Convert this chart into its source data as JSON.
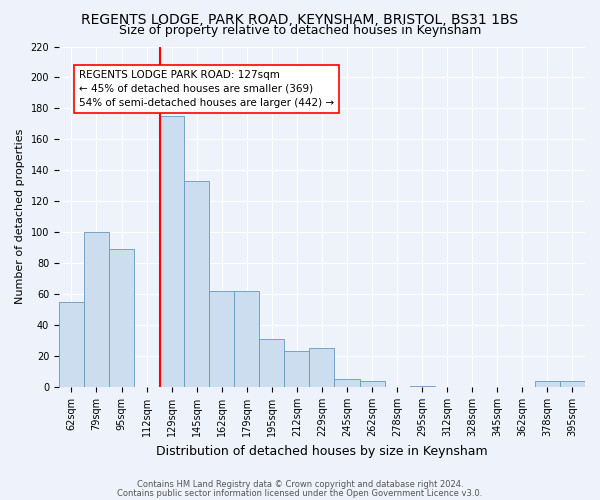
{
  "title": "REGENTS LODGE, PARK ROAD, KEYNSHAM, BRISTOL, BS31 1BS",
  "subtitle": "Size of property relative to detached houses in Keynsham",
  "xlabel": "Distribution of detached houses by size in Keynsham",
  "ylabel": "Number of detached properties",
  "footnote1": "Contains HM Land Registry data © Crown copyright and database right 2024.",
  "footnote2": "Contains public sector information licensed under the Open Government Licence v3.0.",
  "categories": [
    "62sqm",
    "79sqm",
    "95sqm",
    "112sqm",
    "129sqm",
    "145sqm",
    "162sqm",
    "179sqm",
    "195sqm",
    "212sqm",
    "229sqm",
    "245sqm",
    "262sqm",
    "278sqm",
    "295sqm",
    "312sqm",
    "328sqm",
    "345sqm",
    "362sqm",
    "378sqm",
    "395sqm"
  ],
  "values": [
    55,
    100,
    89,
    0,
    175,
    133,
    62,
    62,
    31,
    23,
    25,
    5,
    4,
    0,
    1,
    0,
    0,
    0,
    0,
    4,
    4
  ],
  "bar_color": "#ccddf0",
  "bar_edge_color": "#6699bb",
  "property_line_color": "red",
  "annotation_line1": "REGENTS LODGE PARK ROAD: 127sqm",
  "annotation_line2": "← 45% of detached houses are smaller (369)",
  "annotation_line3": "54% of semi-detached houses are larger (442) →",
  "annotation_box_color": "white",
  "annotation_box_edge_color": "red",
  "ylim": [
    0,
    220
  ],
  "yticks": [
    0,
    20,
    40,
    60,
    80,
    100,
    120,
    140,
    160,
    180,
    200,
    220
  ],
  "background_color": "#eef2fa",
  "grid_color": "#ffffff",
  "title_fontsize": 10,
  "subtitle_fontsize": 9,
  "xlabel_fontsize": 9,
  "ylabel_fontsize": 8,
  "footnote_fontsize": 6,
  "tick_fontsize": 7,
  "annot_fontsize": 7.5
}
